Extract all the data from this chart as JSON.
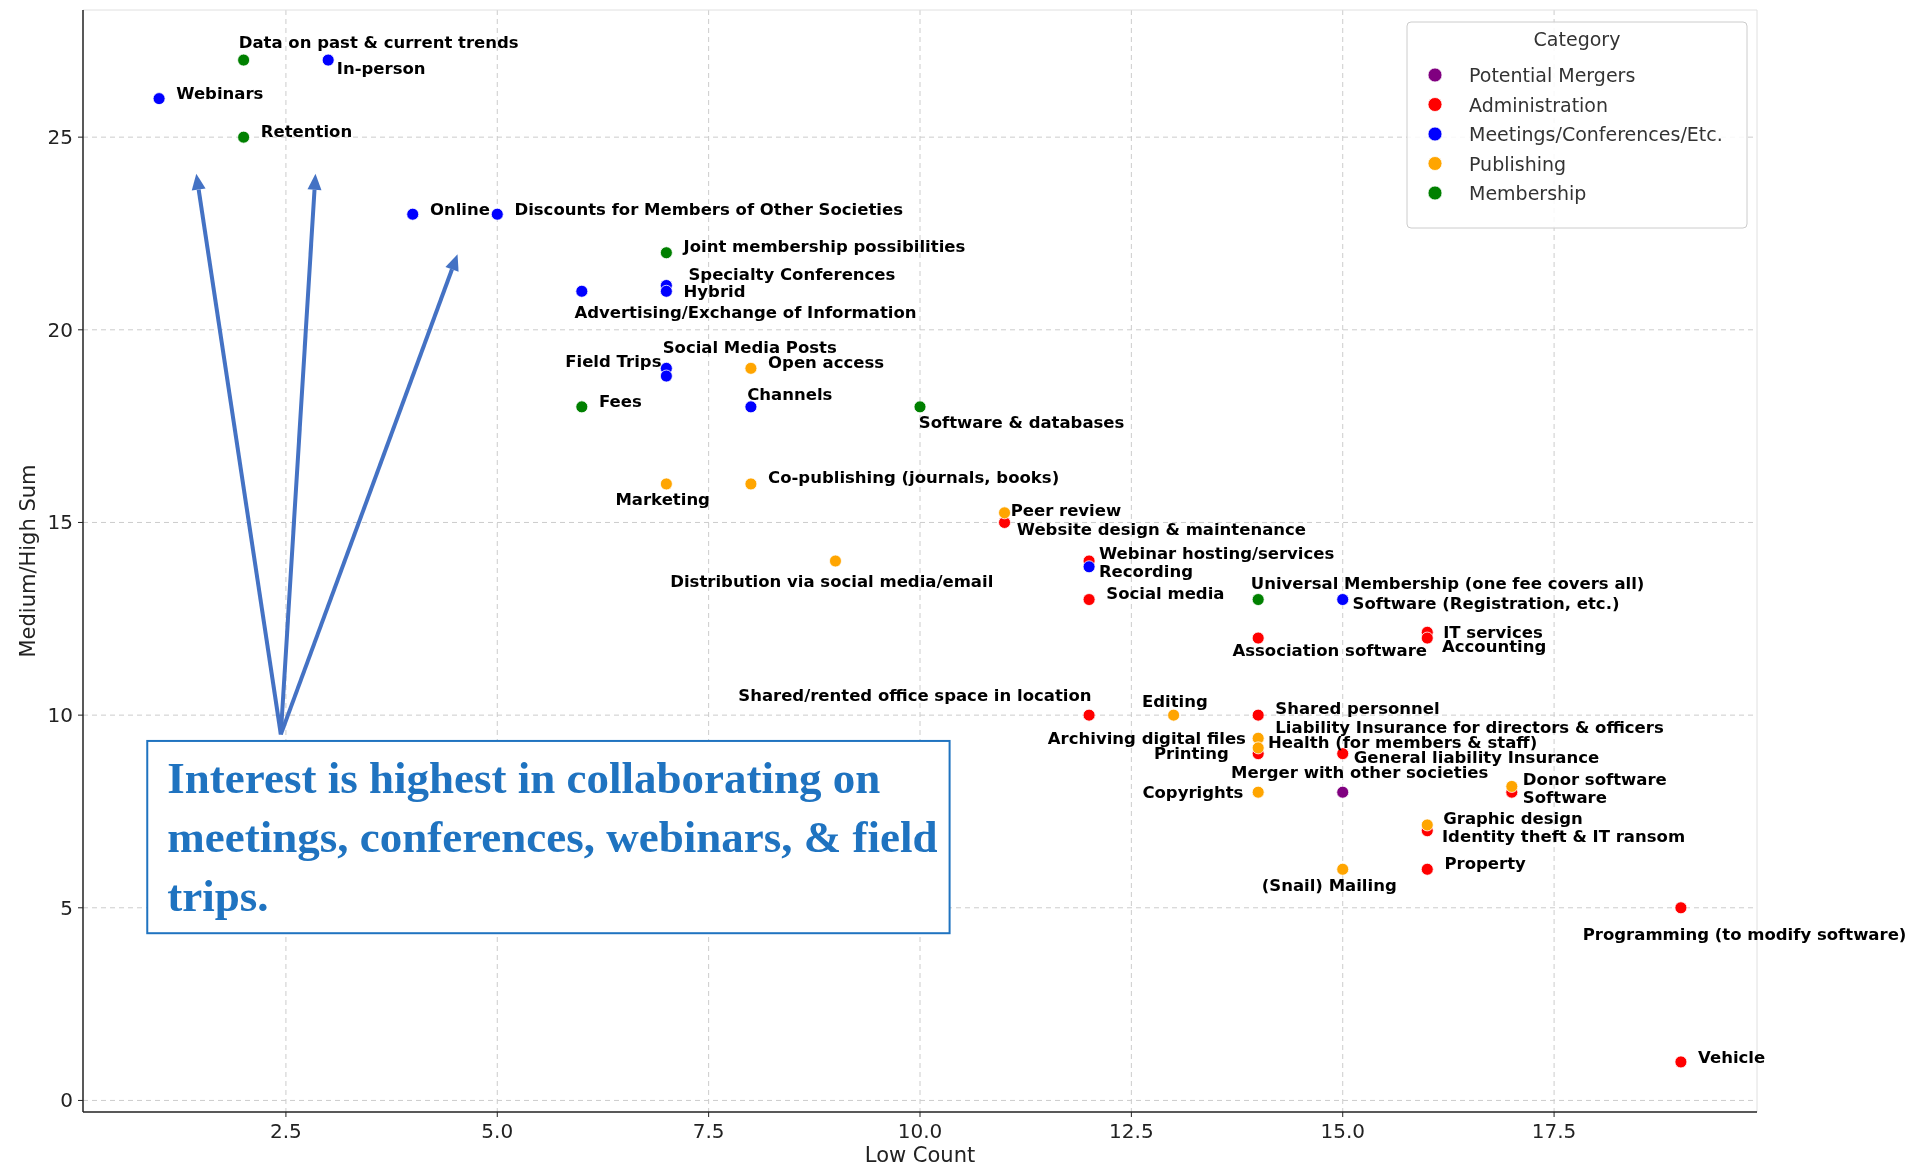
{
  "chart_data": {
    "type": "scatter",
    "xlabel": "Low Count",
    "ylabel": "Medium/High Sum",
    "legend_title": "Category",
    "legend": "top right",
    "grid": true,
    "marker": "circle",
    "xlim": [
      0.1,
      19.9
    ],
    "ylim": [
      -0.3,
      28.3
    ],
    "xticks": [
      2.5,
      {
        "value": 5,
        "label": "5.0"
      },
      7.5,
      {
        "value": 10,
        "label": "10.0"
      },
      12.5,
      {
        "value": 15,
        "label": "15.0"
      },
      17.5
    ],
    "yticks": [
      0,
      5,
      10,
      15,
      20,
      25
    ],
    "series": [
      {
        "name": "Potential Mergers",
        "color": "#800080",
        "x": [
          15
        ],
        "values": [
          8
        ]
      },
      {
        "name": "Administration",
        "color": "#ff0000",
        "x": [
          11,
          12,
          12,
          14,
          16,
          16,
          12,
          14,
          14,
          15,
          17,
          16,
          16,
          19,
          19
        ],
        "values": [
          15,
          14,
          13,
          12,
          12.15,
          12,
          10,
          10,
          9,
          9,
          8,
          7,
          6,
          5,
          1
        ]
      },
      {
        "name": "Meetings/Conferences/Etc.",
        "color": "#0000ff",
        "x": [
          1,
          3,
          4,
          5,
          6,
          7,
          7,
          7,
          7,
          8,
          12,
          15
        ],
        "values": [
          26,
          27,
          23,
          23,
          21,
          21.15,
          21,
          19,
          18.8,
          18,
          13.85,
          13
        ]
      },
      {
        "name": "Publishing",
        "color": "#ffa500",
        "x": [
          8,
          7,
          8,
          11,
          9,
          13,
          14,
          14,
          14,
          15,
          16,
          17
        ],
        "values": [
          19,
          16,
          16,
          15.25,
          14,
          10,
          9.4,
          9.15,
          8,
          6,
          7.15,
          8.15
        ]
      },
      {
        "name": "Membership",
        "color": "#008000",
        "x": [
          2,
          2,
          7,
          6,
          10,
          14
        ],
        "values": [
          27,
          25,
          22,
          18,
          18,
          13
        ]
      }
    ],
    "annotations": [
      {
        "text": "Data on past & current trends",
        "x": 2,
        "y": 27
      },
      {
        "text": "Retention",
        "x": 2,
        "y": 25
      },
      {
        "text": "Joint membership possibilities",
        "x": 7,
        "y": 22
      },
      {
        "text": "Fees",
        "x": 6,
        "y": 18
      },
      {
        "text": "Software & databases",
        "x": 10,
        "y": 18
      },
      {
        "text": "Universal Membership (one fee covers all)",
        "x": 14,
        "y": 13
      },
      {
        "text": "Webinars",
        "x": 1,
        "y": 26
      },
      {
        "text": "In-person",
        "x": 3,
        "y": 27
      },
      {
        "text": "Online",
        "x": 4,
        "y": 23
      },
      {
        "text": "Discounts for Members of Other Societies",
        "x": 5,
        "y": 23
      },
      {
        "text": "Advertising/Exchange of Information",
        "x": 6,
        "y": 21
      },
      {
        "text": "Specialty Conferences",
        "x": 7,
        "y": 21.15
      },
      {
        "text": "Hybrid",
        "x": 7,
        "y": 21
      },
      {
        "text": "Field Trips",
        "x": 7,
        "y": 18.8
      },
      {
        "text": "Social Media Posts",
        "x": 7,
        "y": 19
      },
      {
        "text": "Channels",
        "x": 8,
        "y": 18
      },
      {
        "text": "Recording",
        "x": 12,
        "y": 13.85
      },
      {
        "text": "Software (Registration, etc.)",
        "x": 15,
        "y": 13
      },
      {
        "text": "Open access",
        "x": 8,
        "y": 19
      },
      {
        "text": "Marketing",
        "x": 7,
        "y": 16
      },
      {
        "text": "Co-publishing (journals, books)",
        "x": 8,
        "y": 16
      },
      {
        "text": "Peer review",
        "x": 11,
        "y": 15.25
      },
      {
        "text": "Distribution via social media/email",
        "x": 9,
        "y": 14
      },
      {
        "text": "Editing",
        "x": 13,
        "y": 10
      },
      {
        "text": "Archiving digital files",
        "x": 14,
        "y": 9.4
      },
      {
        "text": "Liability Insurance for directors & officers",
        "x": 14,
        "y": 9.4
      },
      {
        "text": "Health (for members & staff)",
        "x": 14,
        "y": 9.15
      },
      {
        "text": "Copyrights",
        "x": 14,
        "y": 8
      },
      {
        "text": "(Snail) Mailing",
        "x": 15,
        "y": 6
      },
      {
        "text": "Graphic design",
        "x": 16,
        "y": 7.15
      },
      {
        "text": "Donor software",
        "x": 17,
        "y": 8.15
      },
      {
        "text": "Website design & maintenance",
        "x": 11,
        "y": 15
      },
      {
        "text": "Webinar hosting/services",
        "x": 12,
        "y": 14
      },
      {
        "text": "Social media",
        "x": 12,
        "y": 13
      },
      {
        "text": "Association software",
        "x": 14,
        "y": 12
      },
      {
        "text": "IT services",
        "x": 16,
        "y": 12.15
      },
      {
        "text": "Accounting",
        "x": 16,
        "y": 12
      },
      {
        "text": "Shared/rented office space in location",
        "x": 12,
        "y": 10
      },
      {
        "text": "Shared personnel",
        "x": 14,
        "y": 10
      },
      {
        "text": "Printing",
        "x": 14,
        "y": 9
      },
      {
        "text": "General liability Insurance",
        "x": 15,
        "y": 9
      },
      {
        "text": "Software",
        "x": 17,
        "y": 8
      },
      {
        "text": "Identity theft & IT ransom",
        "x": 16,
        "y": 7
      },
      {
        "text": "Property",
        "x": 16,
        "y": 6
      },
      {
        "text": "Programming (to modify software)",
        "x": 19,
        "y": 5
      },
      {
        "text": "Vehicle",
        "x": 19,
        "y": 1
      },
      {
        "text": "Merger with other societies",
        "x": 15,
        "y": 8
      },
      "Interest is highest in collaborating on meetings, conferences, webinars, & field trips."
    ]
  }
}
